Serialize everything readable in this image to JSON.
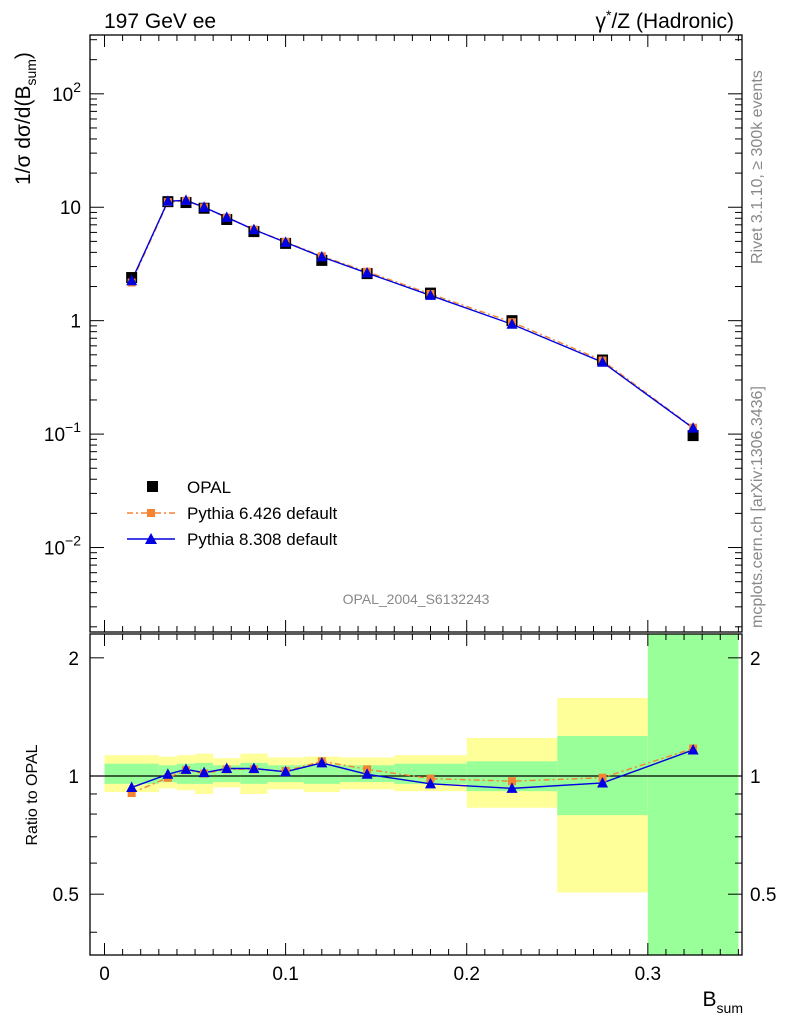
{
  "header": {
    "left": "197 GeV ee",
    "right_gamma": "γ",
    "right_star": "*",
    "right_rest": "/Z (Hadronic)"
  },
  "side": {
    "rivet": "Rivet 3.1.10, ≥ 300k events",
    "mcplots": "mcplots.cern.ch [arXiv:1306.3436]"
  },
  "analysis_id": "OPAL_2004_S6132243",
  "main_ylabel": {
    "part1": "1/σ dσ/d(B",
    "sub": "sum",
    "part2": ")"
  },
  "ratio_ylabel": "Ratio to OPAL",
  "xlabel": {
    "base": "B",
    "sub": "sum"
  },
  "main_yticks": [
    {
      "value": 0.01,
      "base": "10",
      "exp": "−2"
    },
    {
      "value": 0.1,
      "base": "10",
      "exp": "−1"
    },
    {
      "value": 1,
      "base": "1",
      "exp": ""
    },
    {
      "value": 10,
      "base": "10",
      "exp": ""
    },
    {
      "value": 100,
      "base": "10",
      "exp": "2"
    }
  ],
  "ratio_yticks": [
    {
      "value": 0.5,
      "label": "0.5"
    },
    {
      "value": 1,
      "label": "1"
    },
    {
      "value": 2,
      "label": "2"
    }
  ],
  "xticks": [
    {
      "value": 0,
      "label": "0"
    },
    {
      "value": 0.1,
      "label": "0.1"
    },
    {
      "value": 0.2,
      "label": "0.2"
    },
    {
      "value": 0.3,
      "label": "0.3"
    }
  ],
  "legend": [
    {
      "key": "opal",
      "label": "OPAL",
      "color": "#000000"
    },
    {
      "key": "py6",
      "label": "Pythia 6.426 default",
      "color": "#f58432"
    },
    {
      "key": "py8",
      "label": "Pythia 8.308 default",
      "color": "#0000e0"
    }
  ],
  "chart_data": {
    "type": "scatter",
    "xlim": [
      -0.008,
      0.352
    ],
    "main_ylim": [
      0.0018,
      330
    ],
    "main_yscale": "log",
    "ratio_ylim": [
      0.35,
      2.3
    ],
    "ratio_yscale": "log",
    "bins": [
      {
        "x": 0.015,
        "lo": 0.0,
        "hi": 0.03,
        "band_yellow": [
          0.91,
          1.13
        ],
        "band_green": [
          0.955,
          1.075
        ]
      },
      {
        "x": 0.035,
        "lo": 0.03,
        "hi": 0.04,
        "band_yellow": [
          0.93,
          1.12
        ],
        "band_green": [
          0.965,
          1.065
        ]
      },
      {
        "x": 0.045,
        "lo": 0.04,
        "hi": 0.05,
        "band_yellow": [
          0.92,
          1.13
        ],
        "band_green": [
          0.955,
          1.075
        ]
      },
      {
        "x": 0.055,
        "lo": 0.05,
        "hi": 0.06,
        "band_yellow": [
          0.9,
          1.14
        ],
        "band_green": [
          0.955,
          1.08
        ]
      },
      {
        "x": 0.0675,
        "lo": 0.06,
        "hi": 0.075,
        "band_yellow": [
          0.935,
          1.11
        ],
        "band_green": [
          0.965,
          1.065
        ]
      },
      {
        "x": 0.0825,
        "lo": 0.075,
        "hi": 0.09,
        "band_yellow": [
          0.9,
          1.14
        ],
        "band_green": [
          0.955,
          1.08
        ]
      },
      {
        "x": 0.1,
        "lo": 0.09,
        "hi": 0.11,
        "band_yellow": [
          0.925,
          1.115
        ],
        "band_green": [
          0.965,
          1.065
        ]
      },
      {
        "x": 0.12,
        "lo": 0.11,
        "hi": 0.13,
        "band_yellow": [
          0.91,
          1.12
        ],
        "band_green": [
          0.955,
          1.07
        ]
      },
      {
        "x": 0.145,
        "lo": 0.13,
        "hi": 0.16,
        "band_yellow": [
          0.925,
          1.115
        ],
        "band_green": [
          0.965,
          1.065
        ]
      },
      {
        "x": 0.18,
        "lo": 0.16,
        "hi": 0.2,
        "band_yellow": [
          0.915,
          1.13
        ],
        "band_green": [
          0.955,
          1.075
        ]
      },
      {
        "x": 0.225,
        "lo": 0.2,
        "hi": 0.25,
        "band_yellow": [
          0.83,
          1.25
        ],
        "band_green": [
          0.915,
          1.09
        ]
      },
      {
        "x": 0.275,
        "lo": 0.25,
        "hi": 0.3,
        "band_yellow": [
          0.505,
          1.58
        ],
        "band_green": [
          0.795,
          1.265
        ]
      },
      {
        "x": 0.325,
        "lo": 0.3,
        "hi": 0.35,
        "band_yellow": [
          0.35,
          2.3
        ],
        "band_green": [
          0.35,
          2.3
        ]
      }
    ],
    "series": [
      {
        "name": "OPAL",
        "key": "opal",
        "values": [
          2.4,
          11.2,
          11.0,
          9.8,
          7.8,
          6.1,
          4.8,
          3.4,
          2.6,
          1.75,
          1.0,
          0.45,
          0.097
        ]
      },
      {
        "name": "Pythia 6.426 default",
        "key": "py6",
        "values": [
          2.17,
          11.1,
          11.4,
          9.95,
          8.1,
          6.35,
          4.95,
          3.7,
          2.7,
          1.72,
          0.97,
          0.445,
          0.114
        ]
      },
      {
        "name": "Pythia 8.308 default",
        "key": "py8",
        "values": [
          2.25,
          11.3,
          11.5,
          10.0,
          8.15,
          6.35,
          4.9,
          3.65,
          2.63,
          1.67,
          0.93,
          0.43,
          0.113
        ]
      }
    ],
    "ratios": {
      "py6": [
        0.905,
        0.99,
        1.035,
        1.015,
        1.04,
        1.04,
        1.03,
        1.09,
        1.04,
        0.985,
        0.97,
        0.99,
        1.175
      ],
      "py8": [
        0.935,
        1.01,
        1.04,
        1.02,
        1.045,
        1.045,
        1.025,
        1.08,
        1.01,
        0.955,
        0.93,
        0.96,
        1.165
      ]
    },
    "colors": {
      "band_yellow": "#ffff99",
      "band_green": "#99ff99"
    }
  }
}
